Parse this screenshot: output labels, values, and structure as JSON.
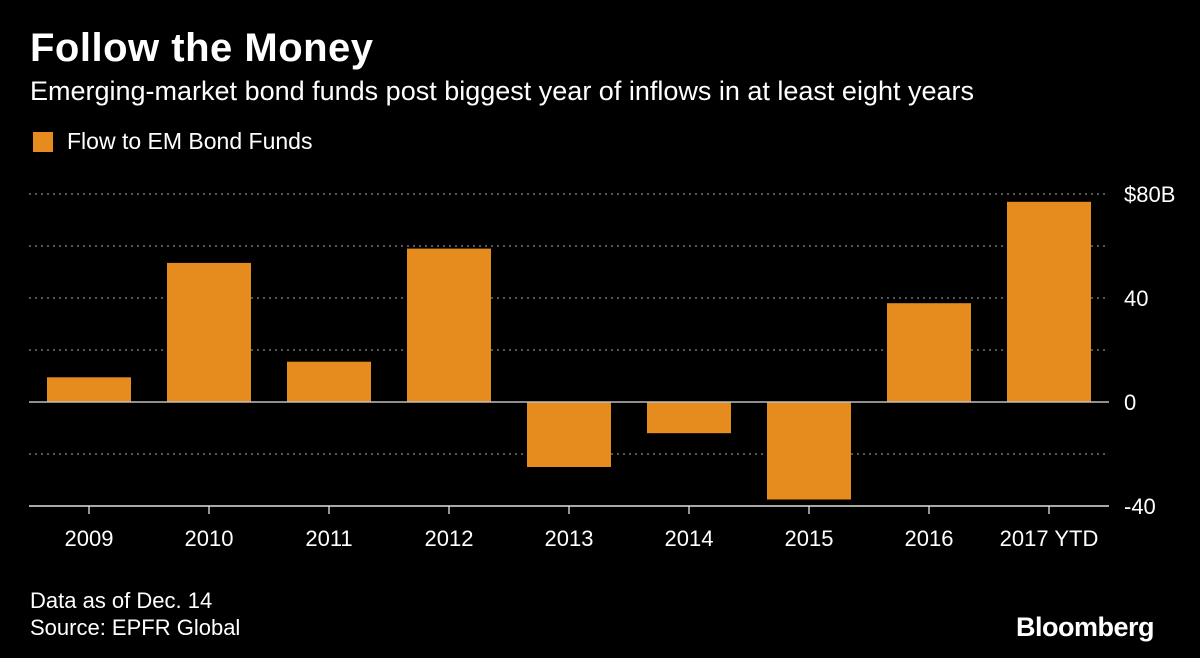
{
  "header": {
    "title": "Follow the Money",
    "subtitle": "Emerging-market bond funds post biggest year of inflows in at least eight years"
  },
  "footer": {
    "note": "Data as of Dec. 14",
    "source": "Source: EPFR Global",
    "brand": "Bloomberg"
  },
  "colors": {
    "bar": "#E68C1F",
    "background": "#000000",
    "grid": "#8a8a8a",
    "text": "#ffffff"
  },
  "chart_data": {
    "type": "bar",
    "title": "Follow the Money",
    "legend": [
      "Flow to EM Bond Funds"
    ],
    "legend_position": "top-left",
    "categories": [
      "2009",
      "2010",
      "2011",
      "2012",
      "2013",
      "2014",
      "2015",
      "2016",
      "2017 YTD"
    ],
    "series": [
      {
        "name": "Flow to EM Bond Funds",
        "values": [
          9.5,
          53.5,
          15.5,
          59,
          -25,
          -12,
          -37.5,
          38,
          77
        ]
      }
    ],
    "ylim": [
      -40,
      80
    ],
    "yticks": [
      -40,
      0,
      40,
      80
    ],
    "ytick_labels": [
      "-40",
      "0",
      "40",
      "$80B"
    ],
    "ygrid_step": 20,
    "grid": true,
    "xlabel": "",
    "ylabel": ""
  }
}
